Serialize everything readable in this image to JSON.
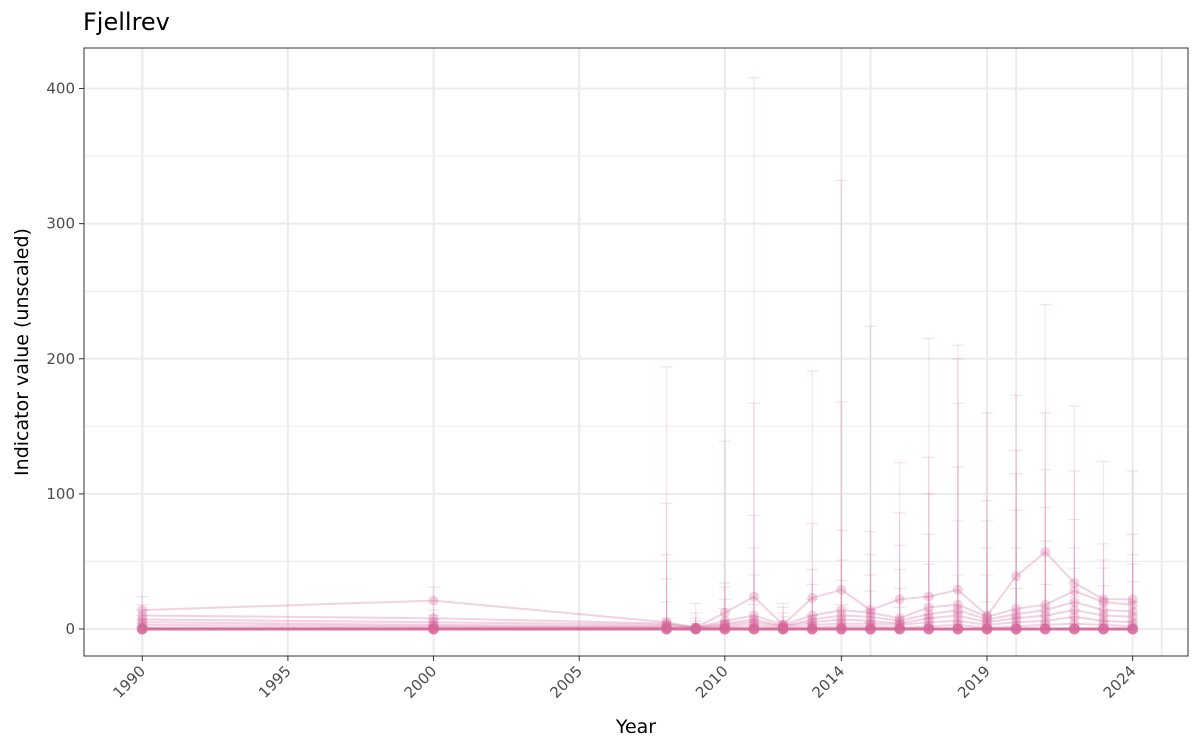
{
  "chart_data": {
    "type": "line",
    "title": "Fjellrev",
    "xlabel": "Year",
    "ylabel": "Indicator value (unscaled)",
    "xlim": [
      1988,
      2025.9
    ],
    "ylim": [
      -20,
      430
    ],
    "x_ticks": [
      "1990",
      "1995",
      "2000",
      "2005",
      "2010",
      "2014",
      "2019",
      "2024"
    ],
    "y_ticks": [
      "0",
      "100",
      "200",
      "300",
      "400"
    ],
    "grid": true,
    "legend": "none",
    "colors": {
      "series": "#d4679a",
      "grid": "#ebebeb",
      "panel_border": "#333333"
    },
    "x_years": [
      1990,
      2000,
      2008,
      2009,
      2010,
      2011,
      2012,
      2013,
      2014,
      2015,
      2016,
      2017,
      2018,
      2019,
      2020,
      2021,
      2022,
      2023,
      2024
    ],
    "series": [
      {
        "values": [
          14,
          21,
          5,
          1,
          12,
          24,
          3,
          23,
          29,
          14,
          22,
          24,
          29,
          10,
          39,
          57,
          34,
          22,
          22
        ],
        "upper": [
          24,
          31,
          194,
          19,
          139,
          408,
          19,
          191,
          332,
          224,
          123,
          215,
          210,
          160,
          173,
          240,
          165,
          124,
          117
        ]
      },
      {
        "values": [
          10,
          8,
          4,
          1,
          6,
          10,
          3,
          10,
          14,
          12,
          8,
          16,
          18,
          9,
          15,
          18,
          28,
          20,
          18
        ],
        "upper": [
          18,
          14,
          93,
          12,
          34,
          167,
          16,
          78,
          168,
          72,
          86,
          127,
          200,
          95,
          132,
          160,
          117,
          63,
          70
        ]
      },
      {
        "values": [
          7,
          5,
          3,
          1,
          4,
          7,
          2,
          7,
          10,
          9,
          6,
          11,
          14,
          7,
          11,
          14,
          20,
          14,
          13
        ],
        "upper": [
          14,
          10,
          55,
          8,
          31,
          84,
          12,
          44,
          73,
          55,
          62,
          100,
          167,
          80,
          115,
          118,
          81,
          51,
          55
        ]
      },
      {
        "values": [
          5,
          3,
          2,
          1,
          3,
          5,
          2,
          5,
          7,
          6,
          4,
          8,
          10,
          5,
          8,
          10,
          14,
          10,
          9
        ],
        "upper": [
          10,
          7,
          37,
          6,
          22,
          60,
          9,
          33,
          51,
          40,
          44,
          70,
          120,
          60,
          88,
          90,
          60,
          45,
          48
        ]
      },
      {
        "values": [
          3,
          2,
          1,
          0,
          2,
          3,
          1,
          3,
          4,
          4,
          3,
          5,
          6,
          3,
          5,
          6,
          9,
          6,
          5
        ],
        "upper": [
          7,
          5,
          20,
          4,
          15,
          40,
          6,
          22,
          36,
          28,
          30,
          48,
          80,
          40,
          60,
          65,
          45,
          32,
          35
        ]
      },
      {
        "values": [
          1,
          1,
          1,
          0,
          1,
          1,
          0,
          1,
          2,
          2,
          1,
          2,
          3,
          1,
          2,
          3,
          4,
          3,
          2
        ],
        "upper": [
          4,
          3,
          8,
          2,
          6,
          18,
          3,
          10,
          18,
          14,
          16,
          24,
          40,
          20,
          30,
          33,
          24,
          18,
          20
        ]
      },
      {
        "values": [
          0,
          0,
          0,
          0,
          0,
          0,
          0,
          0,
          0,
          0,
          0,
          0,
          0,
          0,
          0,
          0,
          0,
          0,
          0
        ],
        "upper": [
          2,
          2,
          3,
          1,
          3,
          6,
          1,
          4,
          6,
          5,
          5,
          8,
          12,
          6,
          9,
          10,
          8,
          6,
          6
        ]
      }
    ]
  }
}
